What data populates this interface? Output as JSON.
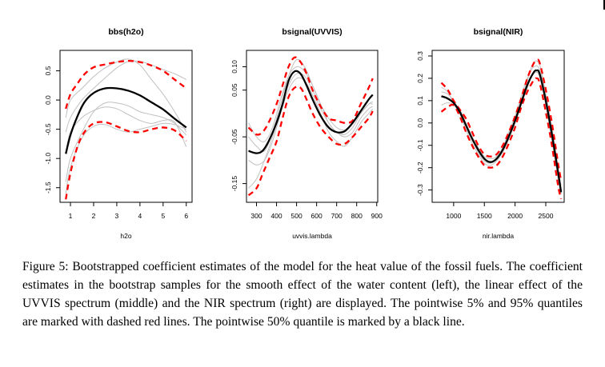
{
  "figure_caption": "Figure 5: Bootstrapped coefficient estimates of the model for the heat value of the fossil fuels. The coefficient estimates in the bootstrap samples for the smooth effect of the water content (left), the linear effect of the UVVIS spectrum (middle) and the NIR spectrum (right) are displayed. The pointwise 5% and 95% quantiles are marked with dashed red lines. The pointwise 50% quantile is marked by a black line.",
  "colors": {
    "median": "#000000",
    "quantile": "#ff0000",
    "bootstrap": "#c0c0c0"
  },
  "chart_data": [
    {
      "type": "line",
      "title": "bbs(h2o)",
      "xlabel": "h2o",
      "ylabel": "",
      "xlim": [
        0.55,
        6.25
      ],
      "ylim": [
        -1.75,
        0.85
      ],
      "xticks": [
        1,
        2,
        3,
        4,
        5,
        6
      ],
      "yticks": [
        -1.5,
        -1.0,
        -0.5,
        0.0,
        0.5
      ],
      "ytick_labels": [
        "-1.5",
        "-1.0",
        "-0.5",
        "0.0",
        "0.5"
      ],
      "series": [
        {
          "name": "median",
          "x": [
            0.8,
            1.0,
            1.3,
            1.6,
            2.0,
            2.5,
            3.0,
            3.5,
            4.0,
            4.5,
            5.0,
            5.5,
            6.0
          ],
          "values": [
            -0.92,
            -0.6,
            -0.28,
            -0.04,
            0.12,
            0.2,
            0.2,
            0.16,
            0.08,
            -0.04,
            -0.16,
            -0.32,
            -0.47
          ]
        },
        {
          "name": "q95",
          "x": [
            0.8,
            1.0,
            1.3,
            1.6,
            2.0,
            2.5,
            3.0,
            3.5,
            4.0,
            4.5,
            5.0,
            5.5,
            6.0
          ],
          "values": [
            -0.15,
            0.1,
            0.28,
            0.44,
            0.56,
            0.61,
            0.65,
            0.67,
            0.65,
            0.59,
            0.5,
            0.35,
            0.2
          ]
        },
        {
          "name": "q05",
          "x": [
            0.8,
            1.0,
            1.3,
            1.6,
            2.0,
            2.5,
            3.0,
            3.5,
            4.0,
            4.5,
            5.0,
            5.5,
            6.0
          ],
          "values": [
            -1.7,
            -1.25,
            -0.8,
            -0.55,
            -0.4,
            -0.38,
            -0.45,
            -0.53,
            -0.55,
            -0.5,
            -0.47,
            -0.52,
            -0.7
          ]
        },
        {
          "name": "bootstrap-1",
          "x": [
            0.8,
            1.0,
            1.5,
            2.0,
            2.5,
            3.0,
            3.5,
            4.0,
            4.5,
            5.0,
            5.5,
            6.0
          ],
          "values": [
            -0.55,
            -0.3,
            0.0,
            0.2,
            0.38,
            0.55,
            0.66,
            0.66,
            0.6,
            0.52,
            0.45,
            0.35
          ]
        },
        {
          "name": "bootstrap-2",
          "x": [
            0.8,
            1.0,
            1.5,
            2.0,
            2.5,
            3.0,
            3.5,
            4.0,
            4.5,
            5.0,
            5.5,
            6.0
          ],
          "values": [
            -0.3,
            0.0,
            0.2,
            0.4,
            0.55,
            0.65,
            0.7,
            0.6,
            0.35,
            0.1,
            -0.2,
            -0.55
          ]
        },
        {
          "name": "bootstrap-3",
          "x": [
            0.8,
            1.0,
            1.5,
            2.0,
            2.5,
            3.0,
            3.5,
            4.0,
            4.5,
            5.0,
            5.5,
            6.0
          ],
          "values": [
            -1.4,
            -1.0,
            -0.55,
            -0.2,
            -0.05,
            -0.05,
            -0.1,
            -0.2,
            -0.25,
            -0.3,
            -0.4,
            -0.6
          ]
        },
        {
          "name": "bootstrap-4",
          "x": [
            0.8,
            1.0,
            1.5,
            2.0,
            2.5,
            3.0,
            3.5,
            4.0,
            4.5,
            5.0,
            5.5,
            6.0
          ],
          "values": [
            -0.9,
            -0.55,
            -0.3,
            -0.18,
            -0.12,
            -0.15,
            -0.25,
            -0.35,
            -0.4,
            -0.35,
            -0.38,
            -0.8
          ]
        },
        {
          "name": "bootstrap-5",
          "x": [
            0.8,
            1.0,
            1.5,
            2.0,
            2.5,
            3.0,
            3.5,
            4.0,
            4.5,
            5.0,
            5.5,
            6.0
          ],
          "values": [
            -1.6,
            -1.15,
            -0.65,
            -0.45,
            -0.42,
            -0.5,
            -0.55,
            -0.5,
            -0.45,
            -0.4,
            -0.42,
            -0.5
          ]
        }
      ]
    },
    {
      "type": "line",
      "title": "bsignal(UVVIS)",
      "xlabel": "uvvis.lambda",
      "ylabel": "",
      "xlim": [
        250,
        905
      ],
      "ylim": [
        -0.19,
        0.135
      ],
      "xticks": [
        300,
        400,
        500,
        600,
        700,
        800,
        900
      ],
      "yticks": [
        -0.15,
        -0.05,
        0.05,
        0.1
      ],
      "ytick_labels": [
        "-0.15",
        "-0.05",
        "0.05",
        "0.10"
      ],
      "series": [
        {
          "name": "median",
          "x": [
            260,
            300,
            330,
            360,
            400,
            430,
            460,
            490,
            520,
            550,
            580,
            620,
            660,
            700,
            740,
            780,
            820,
            860,
            880
          ],
          "values": [
            -0.08,
            -0.085,
            -0.08,
            -0.06,
            -0.02,
            0.02,
            0.07,
            0.09,
            0.085,
            0.06,
            0.03,
            -0.005,
            -0.03,
            -0.04,
            -0.038,
            -0.02,
            0.005,
            0.03,
            0.04
          ]
        },
        {
          "name": "q95",
          "x": [
            260,
            300,
            330,
            360,
            400,
            430,
            460,
            490,
            520,
            550,
            580,
            620,
            660,
            700,
            740,
            780,
            820,
            860,
            880
          ],
          "values": [
            -0.03,
            -0.045,
            -0.04,
            -0.02,
            0.02,
            0.06,
            0.1,
            0.12,
            0.11,
            0.085,
            0.05,
            0.015,
            -0.01,
            -0.015,
            -0.02,
            -0.015,
            0.02,
            0.055,
            0.075
          ]
        },
        {
          "name": "q05",
          "x": [
            260,
            300,
            330,
            360,
            400,
            430,
            460,
            490,
            520,
            550,
            580,
            620,
            660,
            700,
            740,
            780,
            820,
            860,
            880
          ],
          "values": [
            -0.175,
            -0.16,
            -0.13,
            -0.1,
            -0.06,
            -0.01,
            0.035,
            0.055,
            0.055,
            0.03,
            0.0,
            -0.03,
            -0.05,
            -0.065,
            -0.065,
            -0.05,
            -0.03,
            -0.01,
            0.005
          ]
        },
        {
          "name": "bootstrap-1",
          "x": [
            260,
            300,
            340,
            380,
            420,
            460,
            500,
            540,
            580,
            620,
            660,
            700,
            740,
            780,
            820,
            860,
            880
          ],
          "values": [
            -0.05,
            -0.07,
            -0.08,
            -0.04,
            0.02,
            0.08,
            0.115,
            0.1,
            0.06,
            0.02,
            -0.01,
            -0.03,
            -0.035,
            -0.02,
            0.0,
            0.02,
            0.025
          ]
        },
        {
          "name": "bootstrap-2",
          "x": [
            260,
            300,
            340,
            380,
            420,
            460,
            500,
            540,
            580,
            620,
            660,
            700,
            740,
            780,
            820,
            860,
            880
          ],
          "values": [
            -0.1,
            -0.11,
            -0.1,
            -0.06,
            0.0,
            0.05,
            0.075,
            0.07,
            0.04,
            0.0,
            -0.04,
            -0.06,
            -0.07,
            -0.05,
            -0.02,
            0.0,
            0.01
          ]
        },
        {
          "name": "bootstrap-3",
          "x": [
            260,
            300,
            340,
            380,
            420,
            460,
            500,
            540,
            580,
            620,
            660,
            700,
            740,
            780,
            820,
            860,
            880
          ],
          "values": [
            -0.16,
            -0.14,
            -0.1,
            -0.05,
            0.01,
            0.06,
            0.085,
            0.08,
            0.05,
            0.01,
            -0.02,
            -0.04,
            -0.05,
            -0.04,
            -0.01,
            0.01,
            0.015
          ]
        },
        {
          "name": "bootstrap-4",
          "x": [
            260,
            300,
            340,
            380,
            420,
            460,
            500,
            540,
            580,
            620,
            660,
            700,
            740,
            780,
            820,
            860,
            880
          ],
          "values": [
            -0.02,
            -0.05,
            -0.06,
            -0.03,
            0.03,
            0.08,
            0.1,
            0.09,
            0.06,
            0.02,
            -0.02,
            -0.04,
            -0.045,
            -0.03,
            0.0,
            0.02,
            0.02
          ]
        }
      ]
    },
    {
      "type": "line",
      "title": "bsignal(NIR)",
      "xlabel": "nir.lambda",
      "ylabel": "",
      "xlim": [
        650,
        2800
      ],
      "ylim": [
        -0.355,
        0.325
      ],
      "xticks": [
        1000,
        1500,
        2000,
        2500
      ],
      "yticks": [
        -0.3,
        -0.2,
        -0.1,
        0.0,
        0.1,
        0.2,
        0.3
      ],
      "ytick_labels": [
        "-0.3",
        "-0.2",
        "-0.1",
        "0.0",
        "0.1",
        "0.2",
        "0.3"
      ],
      "series": [
        {
          "name": "median",
          "x": [
            800,
            900,
            1000,
            1100,
            1200,
            1300,
            1400,
            1500,
            1600,
            1700,
            1800,
            1900,
            2000,
            2100,
            2200,
            2300,
            2350,
            2400,
            2500,
            2600,
            2700,
            2750
          ],
          "values": [
            0.12,
            0.11,
            0.09,
            0.05,
            -0.01,
            -0.07,
            -0.12,
            -0.16,
            -0.175,
            -0.16,
            -0.12,
            -0.06,
            0.01,
            0.09,
            0.17,
            0.225,
            0.235,
            0.22,
            0.1,
            -0.05,
            -0.22,
            -0.31
          ]
        },
        {
          "name": "q95",
          "x": [
            800,
            900,
            1000,
            1100,
            1200,
            1300,
            1400,
            1500,
            1600,
            1700,
            1800,
            1900,
            2000,
            2100,
            2200,
            2300,
            2350,
            2400,
            2500,
            2600,
            2700,
            2750
          ],
          "values": [
            0.18,
            0.15,
            0.1,
            0.06,
            0.02,
            -0.04,
            -0.1,
            -0.14,
            -0.15,
            -0.14,
            -0.1,
            -0.04,
            0.03,
            0.11,
            0.2,
            0.265,
            0.28,
            0.27,
            0.15,
            0.0,
            -0.18,
            -0.26
          ]
        },
        {
          "name": "q05",
          "x": [
            800,
            900,
            1000,
            1100,
            1200,
            1300,
            1400,
            1500,
            1600,
            1700,
            1800,
            1900,
            2000,
            2100,
            2200,
            2300,
            2350,
            2400,
            2500,
            2600,
            2700,
            2750
          ],
          "values": [
            0.05,
            0.07,
            0.08,
            0.03,
            -0.04,
            -0.1,
            -0.15,
            -0.19,
            -0.2,
            -0.19,
            -0.15,
            -0.09,
            -0.02,
            0.07,
            0.14,
            0.19,
            0.2,
            0.18,
            0.05,
            -0.1,
            -0.28,
            -0.34
          ]
        },
        {
          "name": "bootstrap-1",
          "x": [
            800,
            900,
            1000,
            1100,
            1200,
            1300,
            1400,
            1500,
            1600,
            1700,
            1800,
            1900,
            2000,
            2100,
            2200,
            2300,
            2400,
            2500,
            2600,
            2700,
            2750
          ],
          "values": [
            0.14,
            0.13,
            0.1,
            0.05,
            -0.01,
            -0.07,
            -0.13,
            -0.17,
            -0.18,
            -0.16,
            -0.11,
            -0.04,
            0.03,
            0.12,
            0.2,
            0.25,
            0.24,
            0.12,
            -0.03,
            -0.2,
            -0.3
          ]
        },
        {
          "name": "bootstrap-2",
          "x": [
            800,
            900,
            1000,
            1100,
            1200,
            1300,
            1400,
            1500,
            1600,
            1700,
            1800,
            1900,
            2000,
            2100,
            2200,
            2300,
            2400,
            2500,
            2600,
            2700,
            2750
          ],
          "values": [
            0.08,
            0.09,
            0.08,
            0.04,
            -0.03,
            -0.09,
            -0.14,
            -0.18,
            -0.19,
            -0.17,
            -0.13,
            -0.07,
            0.0,
            0.08,
            0.16,
            0.22,
            0.21,
            0.08,
            -0.08,
            -0.25,
            -0.32
          ]
        },
        {
          "name": "bootstrap-3",
          "x": [
            800,
            900,
            1000,
            1100,
            1200,
            1300,
            1400,
            1500,
            1600,
            1700,
            1800,
            1900,
            2000,
            2100,
            2200,
            2300,
            2400,
            2500,
            2600,
            2700,
            2750
          ],
          "values": [
            0.16,
            0.14,
            0.09,
            0.06,
            0.0,
            -0.06,
            -0.11,
            -0.15,
            -0.16,
            -0.15,
            -0.11,
            -0.05,
            0.02,
            0.1,
            0.19,
            0.27,
            0.26,
            0.13,
            -0.02,
            -0.2,
            -0.28
          ]
        }
      ]
    }
  ]
}
